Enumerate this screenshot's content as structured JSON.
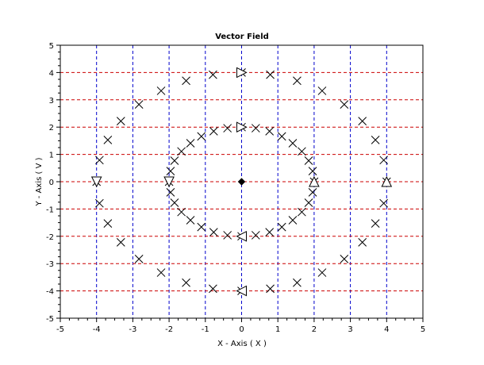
{
  "chart_data": {
    "type": "scatter",
    "title": "Vector Field",
    "xlabel": "X - Axis ( X )",
    "ylabel": "Y - Axis ( V )",
    "xlim": [
      -5,
      5
    ],
    "ylim": [
      -5,
      5
    ],
    "xticks": [
      "-5",
      "-4",
      "-3",
      "-2",
      "-1",
      "0",
      "1",
      "2",
      "3",
      "4",
      "5"
    ],
    "yticks": [
      "-5",
      "-4",
      "-3",
      "-2",
      "-1",
      "0",
      "1",
      "2",
      "3",
      "4",
      "5"
    ],
    "grid": true,
    "grid_colors": {
      "vertical": "#0000cc",
      "horizontal": "#cc0000"
    },
    "marker": "x",
    "series": [
      {
        "points": [
          [
            4,
            0
          ],
          [
            3.92,
            0.79
          ],
          [
            3.69,
            1.53
          ],
          [
            3.33,
            2.22
          ],
          [
            2.83,
            2.83
          ],
          [
            2.22,
            3.33
          ],
          [
            1.53,
            3.7
          ],
          [
            0.79,
            3.92
          ],
          [
            0,
            4
          ],
          [
            -0.79,
            3.92
          ],
          [
            -1.53,
            3.7
          ],
          [
            -2.22,
            3.33
          ],
          [
            -2.83,
            2.83
          ],
          [
            -3.33,
            2.22
          ],
          [
            -3.69,
            1.53
          ],
          [
            -3.92,
            0.79
          ],
          [
            -4,
            0
          ],
          [
            -3.92,
            -0.79
          ],
          [
            -3.69,
            -1.53
          ],
          [
            -3.33,
            -2.22
          ],
          [
            -2.83,
            -2.83
          ],
          [
            -2.22,
            -3.33
          ],
          [
            -1.53,
            -3.7
          ],
          [
            -0.79,
            -3.92
          ],
          [
            0,
            -4
          ],
          [
            0.79,
            -3.92
          ],
          [
            1.53,
            -3.7
          ],
          [
            2.22,
            -3.33
          ],
          [
            2.83,
            -2.83
          ],
          [
            3.33,
            -2.22
          ],
          [
            3.69,
            -1.53
          ],
          [
            3.92,
            -0.79
          ]
        ]
      },
      {
        "points": [
          [
            2,
            0
          ],
          [
            1.96,
            0.39
          ],
          [
            1.85,
            0.77
          ],
          [
            1.66,
            1.11
          ],
          [
            1.41,
            1.41
          ],
          [
            1.11,
            1.66
          ],
          [
            0.77,
            1.85
          ],
          [
            0.39,
            1.96
          ],
          [
            0,
            2
          ],
          [
            -0.39,
            1.96
          ],
          [
            -0.77,
            1.85
          ],
          [
            -1.11,
            1.66
          ],
          [
            -1.41,
            1.41
          ],
          [
            -1.66,
            1.11
          ],
          [
            -1.85,
            0.77
          ],
          [
            -1.96,
            0.39
          ],
          [
            -2,
            0
          ],
          [
            -1.96,
            -0.39
          ],
          [
            -1.85,
            -0.77
          ],
          [
            -1.66,
            -1.11
          ],
          [
            -1.41,
            -1.41
          ],
          [
            -1.11,
            -1.66
          ],
          [
            -0.77,
            -1.85
          ],
          [
            -0.39,
            -1.96
          ],
          [
            0,
            -2
          ],
          [
            0.39,
            -1.96
          ],
          [
            0.77,
            -1.85
          ],
          [
            1.11,
            -1.66
          ],
          [
            1.41,
            -1.41
          ],
          [
            1.66,
            -1.11
          ],
          [
            1.85,
            -0.77
          ],
          [
            1.96,
            -0.39
          ]
        ]
      }
    ],
    "arrows": [
      {
        "x": 0,
        "y": 4,
        "direction": "right"
      },
      {
        "x": -4,
        "y": 0,
        "direction": "down"
      },
      {
        "x": 0,
        "y": -4,
        "direction": "left"
      },
      {
        "x": 4,
        "y": 0,
        "direction": "up"
      },
      {
        "x": 0,
        "y": 2,
        "direction": "right"
      },
      {
        "x": -2,
        "y": 0,
        "direction": "down"
      },
      {
        "x": 0,
        "y": -2,
        "direction": "left"
      },
      {
        "x": 2,
        "y": 0,
        "direction": "up"
      }
    ],
    "center_point": {
      "x": 0,
      "y": 0,
      "marker": "diamond"
    }
  }
}
